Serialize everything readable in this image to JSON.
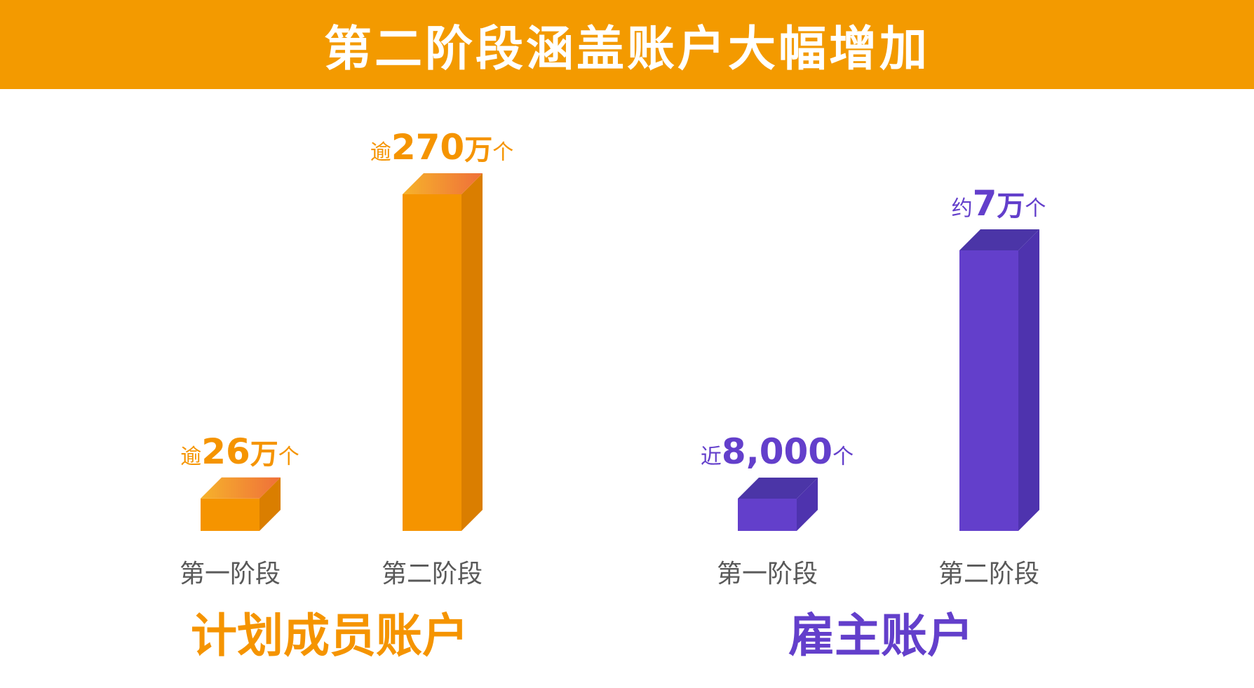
{
  "title": "第二阶段涵盖账户大幅增加",
  "colors": {
    "banner": "#F39A00",
    "orange_front": "#F59400",
    "orange_side": "#DA7E00",
    "orange_top_a": "#F6B32B",
    "orange_top_b": "#EF6F3A",
    "purple_front": "#633FCB",
    "purple_side": "#4E33AE",
    "purple_top": "#4B35A7",
    "category_text": "#595959"
  },
  "chart_data": [
    {
      "type": "bar",
      "title": "计划成员账户",
      "color_scheme": "orange",
      "categories": [
        "第一阶段",
        "第二阶段"
      ],
      "values": [
        260000,
        2700000
      ],
      "value_labels": [
        {
          "prefix": "逾",
          "number": "26",
          "unit": "万",
          "suffix": "个"
        },
        {
          "prefix": "逾",
          "number": "270",
          "unit": "万",
          "suffix": "个"
        }
      ]
    },
    {
      "type": "bar",
      "title": "雇主账户",
      "color_scheme": "purple",
      "categories": [
        "第一阶段",
        "第二阶段"
      ],
      "values": [
        8000,
        70000
      ],
      "value_labels": [
        {
          "prefix": "近",
          "number": "8,000",
          "unit": "",
          "suffix": "个"
        },
        {
          "prefix": "约",
          "number": "7",
          "unit": "万",
          "suffix": "个"
        }
      ]
    }
  ]
}
